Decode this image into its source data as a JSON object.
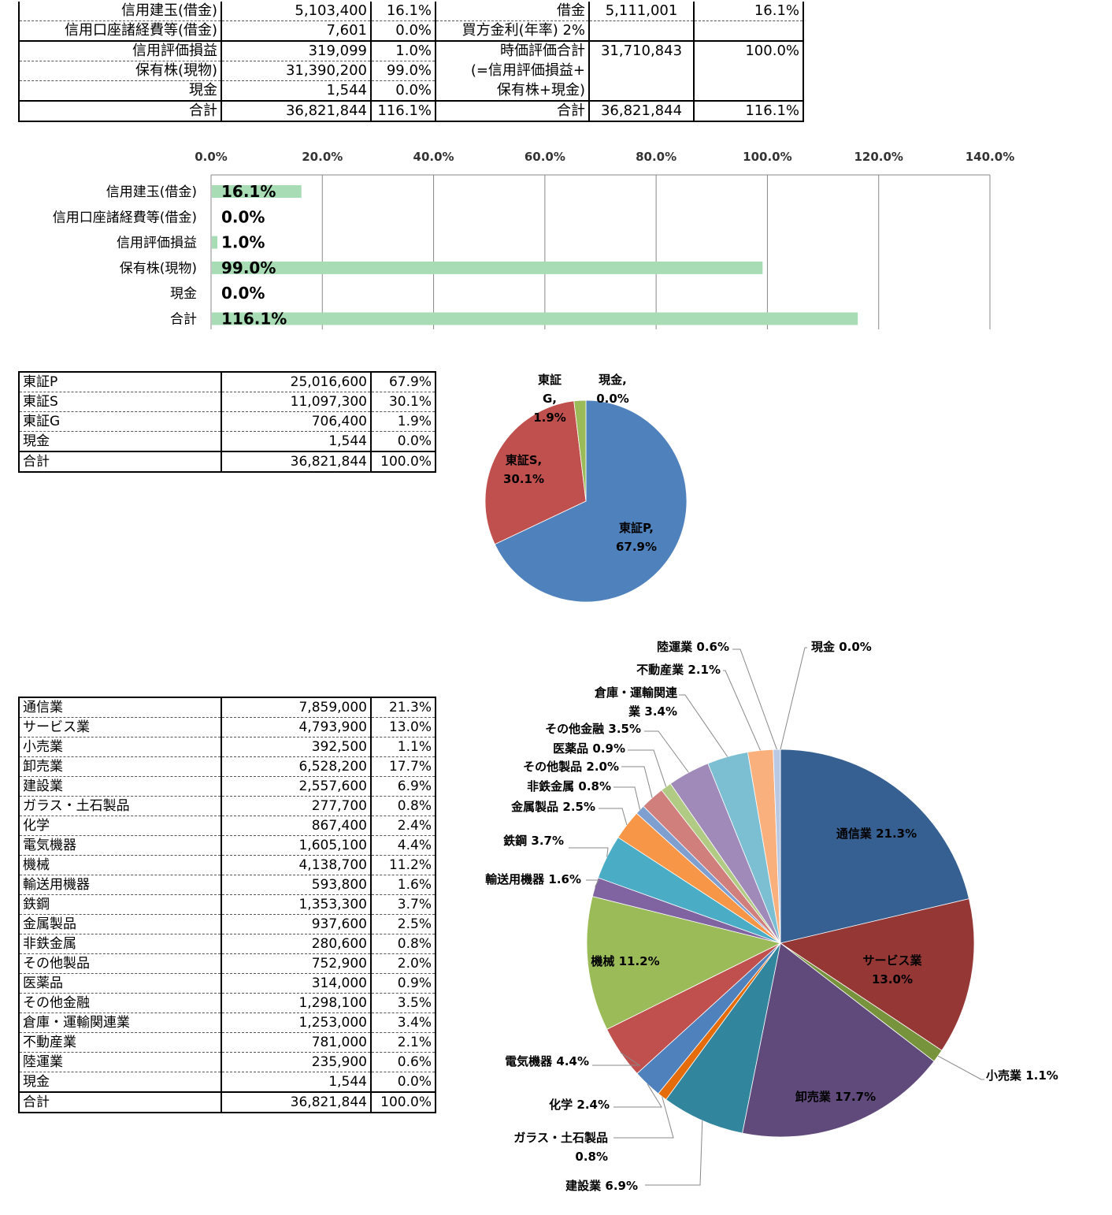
{
  "top_table": {
    "rows": [
      {
        "label": "信用建玉(借金)",
        "value": "5,103,400",
        "pct": "16.1%",
        "r_label": "借金",
        "r_value": "5,111,001",
        "r_pct": "16.1%"
      },
      {
        "label": "信用口座諸経費等(借金)",
        "value": "7,601",
        "pct": "0.0%",
        "r_label": "買方金利(年率) 2%",
        "r_value": "",
        "r_pct": ""
      },
      {
        "label": "信用評価損益",
        "value": "319,099",
        "pct": "1.0%",
        "r_label": "時価評価合計",
        "r_value": "31,710,843",
        "r_pct": "100.0%"
      },
      {
        "label": "保有株(現物)",
        "value": "31,390,200",
        "pct": "99.0%",
        "r_label": "(=信用評価損益+",
        "r_value": "",
        "r_pct": ""
      },
      {
        "label": "現金",
        "value": "1,544",
        "pct": "0.0%",
        "r_label": "保有株+現金)",
        "r_value": "",
        "r_pct": ""
      }
    ],
    "total": {
      "label": "合計",
      "value": "36,821,844",
      "pct": "116.1%",
      "r_label": "合計",
      "r_value": "36,821,844",
      "r_pct": "116.1%"
    }
  },
  "market_table": {
    "rows": [
      {
        "label": "東証P",
        "value": "25,016,600",
        "pct": "67.9%"
      },
      {
        "label": "東証S",
        "value": "11,097,300",
        "pct": "30.1%"
      },
      {
        "label": "東証G",
        "value": "706,400",
        "pct": "1.9%"
      },
      {
        "label": "現金",
        "value": "1,544",
        "pct": "0.0%"
      }
    ],
    "total": {
      "label": "合計",
      "value": "36,821,844",
      "pct": "100.0%"
    }
  },
  "industry_table": {
    "rows": [
      {
        "label": "通信業",
        "value": "7,859,000",
        "pct": "21.3%"
      },
      {
        "label": "サービス業",
        "value": "4,793,900",
        "pct": "13.0%"
      },
      {
        "label": "小売業",
        "value": "392,500",
        "pct": "1.1%"
      },
      {
        "label": "卸売業",
        "value": "6,528,200",
        "pct": "17.7%"
      },
      {
        "label": "建設業",
        "value": "2,557,600",
        "pct": "6.9%"
      },
      {
        "label": "ガラス・土石製品",
        "value": "277,700",
        "pct": "0.8%"
      },
      {
        "label": "化学",
        "value": "867,400",
        "pct": "2.4%"
      },
      {
        "label": "電気機器",
        "value": "1,605,100",
        "pct": "4.4%"
      },
      {
        "label": "機械",
        "value": "4,138,700",
        "pct": "11.2%"
      },
      {
        "label": "輸送用機器",
        "value": "593,800",
        "pct": "1.6%"
      },
      {
        "label": "鉄鋼",
        "value": "1,353,300",
        "pct": "3.7%"
      },
      {
        "label": "金属製品",
        "value": "937,600",
        "pct": "2.5%"
      },
      {
        "label": "非鉄金属",
        "value": "280,600",
        "pct": "0.8%"
      },
      {
        "label": "その他製品",
        "value": "752,900",
        "pct": "2.0%"
      },
      {
        "label": "医薬品",
        "value": "314,000",
        "pct": "0.9%"
      },
      {
        "label": "その他金融",
        "value": "1,298,100",
        "pct": "3.5%"
      },
      {
        "label": "倉庫・運輸関連業",
        "value": "1,253,000",
        "pct": "3.4%"
      },
      {
        "label": "不動産業",
        "value": "781,000",
        "pct": "2.1%"
      },
      {
        "label": "陸運業",
        "value": "235,900",
        "pct": "0.6%"
      },
      {
        "label": "現金",
        "value": "1,544",
        "pct": "0.0%"
      }
    ],
    "total": {
      "label": "合計",
      "value": "36,821,844",
      "pct": "100.0%"
    }
  },
  "chart_data": [
    {
      "type": "bar",
      "orientation": "horizontal",
      "categories": [
        "信用建玉(借金)",
        "信用口座諸経費等(借金)",
        "信用評価損益",
        "保有株(現物)",
        "現金",
        "合計"
      ],
      "values": [
        16.1,
        0.0,
        1.0,
        99.0,
        0.0,
        116.1
      ],
      "data_labels": [
        "16.1%",
        "0.0%",
        "1.0%",
        "99.0%",
        "0.0%",
        "116.1%"
      ],
      "xlim": [
        0,
        140
      ],
      "xticks": [
        "0.0%",
        "20.0%",
        "40.0%",
        "60.0%",
        "80.0%",
        "100.0%",
        "120.0%",
        "140.0%"
      ],
      "bar_color": "#a8dcb4",
      "grid": true
    },
    {
      "type": "pie",
      "categories": [
        "東証P",
        "東証S",
        "東証G",
        "現金"
      ],
      "values": [
        67.9,
        30.1,
        1.9,
        0.0
      ],
      "labels": [
        [
          "東証P,",
          "67.9%"
        ],
        [
          "東証S,",
          "30.1%"
        ],
        [
          "東証",
          "G,",
          "1.9%"
        ],
        [
          "現金,",
          "0.0%"
        ]
      ],
      "colors": [
        "#4f81bd",
        "#c0504d",
        "#9bbb59",
        "#8064a2"
      ]
    },
    {
      "type": "pie",
      "categories": [
        "通信業",
        "サービス業",
        "小売業",
        "卸売業",
        "建設業",
        "ガラス・土石製品",
        "化学",
        "電気機器",
        "機械",
        "輸送用機器",
        "鉄鋼",
        "金属製品",
        "非鉄金属",
        "その他製品",
        "医薬品",
        "その他金融",
        "倉庫・運輸関連業",
        "不動産業",
        "陸運業",
        "現金"
      ],
      "values": [
        21.3,
        13.0,
        1.1,
        17.7,
        6.9,
        0.8,
        2.4,
        4.4,
        11.2,
        1.6,
        3.7,
        2.5,
        0.8,
        2.0,
        0.9,
        3.5,
        3.4,
        2.1,
        0.6,
        0.0
      ],
      "labels": [
        [
          "通信業 21.3%"
        ],
        [
          "サービス業",
          "13.0%"
        ],
        [
          "小売業 1.1%"
        ],
        [
          "卸売業 17.7%"
        ],
        [
          "建設業 6.9%"
        ],
        [
          "ガラス・土石製品",
          "0.8%"
        ],
        [
          "化学 2.4%"
        ],
        [
          "電気機器 4.4%"
        ],
        [
          "機械 11.2%"
        ],
        [
          "輸送用機器 1.6%"
        ],
        [
          "鉄鋼 3.7%"
        ],
        [
          "金属製品 2.5%"
        ],
        [
          "非鉄金属 0.8%"
        ],
        [
          "その他製品 2.0%"
        ],
        [
          "医薬品 0.9%"
        ],
        [
          "その他金融 3.5%"
        ],
        [
          "倉庫・運輸関連",
          "業 3.4%"
        ],
        [
          "不動産業 2.1%"
        ],
        [
          "陸運業 0.6%"
        ],
        [
          "現金 0.0%"
        ]
      ],
      "colors": [
        "#376092",
        "#953735",
        "#77933c",
        "#604a7b",
        "#31859c",
        "#e46c0a",
        "#4f81bd",
        "#c0504d",
        "#9bbb59",
        "#8064a2",
        "#4bacc6",
        "#f79646",
        "#7f9fd0",
        "#d07f7d",
        "#b1cb85",
        "#9f8ab9",
        "#7cbfd3",
        "#f9b07d",
        "#b9c9e4",
        "#e4b7b6"
      ]
    }
  ]
}
